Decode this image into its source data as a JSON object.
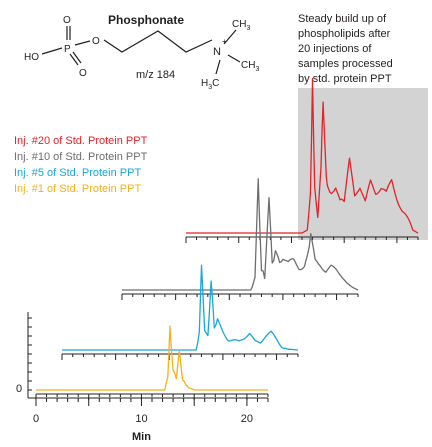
{
  "colors": {
    "inj20": "#e1232b",
    "inj10": "#6d6e70",
    "inj5": "#1aa6d6",
    "inj1": "#f2b21b",
    "highlight": "#d3d3d4",
    "axis": "#231f20"
  },
  "structure": {
    "title": "Phosphonate",
    "mz": "m/z 184",
    "atoms": {
      "o_top": "O",
      "p": "P",
      "ho": "HO",
      "o_bottom": "O",
      "o_ester": "O",
      "n": "N",
      "plus": "+",
      "ch3_top": "CH",
      "ch3_right": "CH",
      "h3c": "H",
      "sub3": "3",
      "h3c_c": "C"
    }
  },
  "annotation": {
    "lines": [
      "Steady build up of",
      "phospholipids after",
      "20 injections of",
      "samples processed",
      "by std. protein PPT"
    ]
  },
  "chart_data": {
    "type": "line",
    "title": "",
    "xlabel": "Min",
    "ylabel": "",
    "xlim": [
      0,
      22
    ],
    "x_ticks": [
      0,
      10,
      20
    ],
    "y_ticks": [
      0
    ],
    "grid": false,
    "legend_position": "top-left",
    "highlight_region_note": "shaded region over later retention times of Inj. #20 trace",
    "series": [
      {
        "name": "Inj. #20 of Std. Protein PPT",
        "color": "#e1232b",
        "x": [
          0,
          10,
          11.0,
          11.5,
          11.8,
          12.0,
          12.2,
          12.5,
          12.8,
          13.0,
          13.3,
          13.5,
          13.8,
          14.2,
          14.6,
          15.0,
          15.5,
          16.0,
          16.5,
          17.0,
          17.5,
          18.0,
          18.5,
          19.0,
          19.5,
          20.0,
          20.5,
          21.0,
          21.5,
          22.0
        ],
        "y": [
          0,
          0,
          0,
          0.02,
          0.25,
          1.0,
          0.3,
          0.1,
          0.45,
          0.9,
          0.35,
          0.3,
          0.25,
          0.3,
          0.2,
          0.22,
          0.5,
          0.25,
          0.3,
          0.2,
          0.35,
          0.28,
          0.3,
          0.25,
          0.35,
          0.25,
          0.15,
          0.08,
          0.02,
          0
        ]
      },
      {
        "name": "Inj. #10 of Std. Protein PPT",
        "color": "#6d6e70",
        "x": [
          0,
          12.0,
          12.4,
          12.7,
          13.0,
          13.3,
          13.7,
          14.0,
          14.3,
          14.7,
          15.0,
          15.5,
          16.0,
          16.5,
          17.0,
          17.3,
          17.6,
          18.0,
          18.5,
          19.0,
          19.5,
          20.0,
          20.5,
          21.0,
          21.5,
          22.0
        ],
        "y": [
          0,
          0,
          0.1,
          0.85,
          0.15,
          0.1,
          0.72,
          0.2,
          0.3,
          0.2,
          0.25,
          0.2,
          0.22,
          0.18,
          0.2,
          0.25,
          0.45,
          0.22,
          0.2,
          0.15,
          0.18,
          0.15,
          0.1,
          0.05,
          0.02,
          0
        ]
      },
      {
        "name": "Inj. #5 of Std. Protein PPT",
        "color": "#1aa6d6",
        "x": [
          0,
          12.5,
          12.8,
          13.0,
          13.3,
          13.6,
          13.9,
          14.2,
          14.5,
          15.0,
          15.5,
          16.0,
          16.5,
          17.0,
          17.5,
          18.0,
          18.5,
          19.0,
          19.5,
          20.0,
          20.5,
          21.0,
          22.0
        ],
        "y": [
          0,
          0,
          0.2,
          0.9,
          0.2,
          0.15,
          0.72,
          0.25,
          0.3,
          0.2,
          0.12,
          0.1,
          0.08,
          0.12,
          0.18,
          0.1,
          0.08,
          0.14,
          0.18,
          0.12,
          0.05,
          0.01,
          0
        ]
      },
      {
        "name": "Inj. #1 of Std. Protein PPT",
        "color": "#f2b21b",
        "x": [
          0,
          12.2,
          12.5,
          12.7,
          13.0,
          13.3,
          13.6,
          13.9,
          14.2,
          14.6,
          15.0,
          22.0
        ],
        "y": [
          0,
          0,
          0.15,
          0.72,
          0.2,
          0.15,
          0.42,
          0.12,
          0.06,
          0.02,
          0,
          0
        ]
      }
    ]
  }
}
